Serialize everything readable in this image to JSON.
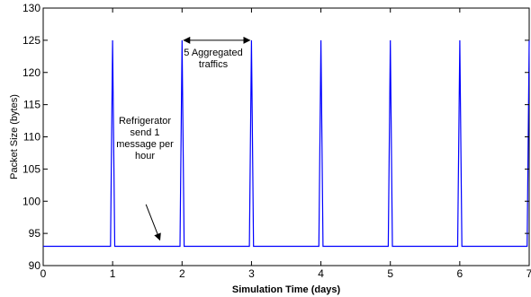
{
  "chart_data": {
    "type": "line",
    "xlabel": "Simulation Time (days)",
    "ylabel": "Packet Size (bytes)",
    "xlim": [
      0,
      7
    ],
    "ylim": [
      90,
      130
    ],
    "x_ticks": [
      0,
      1,
      2,
      3,
      4,
      5,
      6,
      7
    ],
    "y_ticks": [
      90,
      95,
      100,
      105,
      110,
      115,
      120,
      125,
      130
    ],
    "grid": false,
    "series": [
      {
        "color": "#0000ff",
        "x": [
          0,
          0.97,
          1.0,
          1.03,
          1.97,
          2.0,
          2.03,
          2.97,
          3.0,
          3.03,
          3.97,
          4.0,
          4.03,
          4.97,
          5.0,
          5.03,
          5.97,
          6.0,
          6.03,
          6.97,
          7.0
        ],
        "y": [
          93,
          93,
          125,
          93,
          93,
          125,
          93,
          93,
          125,
          93,
          93,
          125,
          93,
          93,
          125,
          93,
          93,
          125,
          93,
          93,
          125
        ]
      }
    ],
    "annotations": [
      {
        "lines": [
          "5 Aggregated",
          "traffics"
        ],
        "arrow": "double",
        "x_from": 2,
        "x_to": 3,
        "y": 125
      },
      {
        "lines": [
          "Refrigerator",
          "send 1",
          "message per",
          "hour"
        ],
        "arrow": "single",
        "x_from": 1.48,
        "y_from": 99.5,
        "x_to": 1.68,
        "y_to": 94
      }
    ]
  }
}
